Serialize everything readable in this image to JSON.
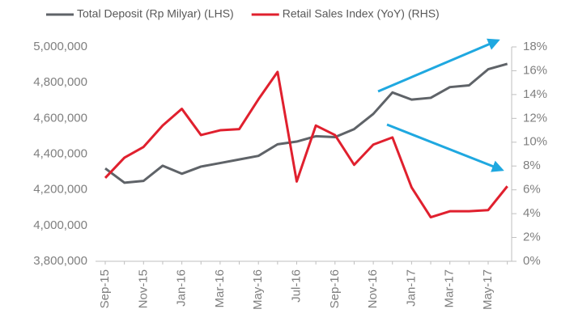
{
  "chart_data": {
    "type": "line",
    "categories": [
      "Sep-15",
      null,
      "Nov-15",
      null,
      "Jan-16",
      null,
      "Mar-16",
      null,
      "May-16",
      null,
      "Jul-16",
      null,
      "Sep-16",
      null,
      "Nov-16",
      null,
      "Jan-17",
      null,
      "Mar-17",
      null,
      "May-17",
      null
    ],
    "series": [
      {
        "name": "Total Deposit (Rp Milyar) (LHS)",
        "color": "#5f6368",
        "axis": "y",
        "values": [
          4320000,
          4240000,
          4250000,
          4335000,
          4290000,
          4330000,
          4350000,
          4370000,
          4390000,
          4455000,
          4470000,
          4500000,
          4495000,
          4540000,
          4625000,
          4745000,
          4705000,
          4715000,
          4775000,
          4785000,
          4875000,
          4905000
        ]
      },
      {
        "name": "Retail Sales Index (YoY) (RHS)",
        "color": "#e0202e",
        "axis": "y2",
        "values": [
          7.0,
          8.7,
          9.6,
          11.4,
          12.8,
          10.6,
          11.0,
          11.1,
          13.6,
          15.9,
          6.7,
          11.4,
          10.6,
          8.1,
          9.8,
          10.4,
          6.2,
          3.7,
          4.2,
          4.2,
          4.3,
          6.3
        ]
      }
    ],
    "ylim": [
      3800000,
      5000000
    ],
    "yticks": [
      {
        "value": 3800000,
        "label": "3,800,000"
      },
      {
        "value": 4000000,
        "label": "4,000,000"
      },
      {
        "value": 4200000,
        "label": "4,200,000"
      },
      {
        "value": 4400000,
        "label": "4,400,000"
      },
      {
        "value": 4600000,
        "label": "4,600,000"
      },
      {
        "value": 4800000,
        "label": "4,800,000"
      },
      {
        "value": 5000000,
        "label": "5,000,000"
      }
    ],
    "y2lim": [
      0,
      18
    ],
    "y2ticks": [
      {
        "value": 0,
        "label": "0%"
      },
      {
        "value": 2,
        "label": "2%"
      },
      {
        "value": 4,
        "label": "4%"
      },
      {
        "value": 6,
        "label": "6%"
      },
      {
        "value": 8,
        "label": "8%"
      },
      {
        "value": 10,
        "label": "10%"
      },
      {
        "value": 12,
        "label": "12%"
      },
      {
        "value": 14,
        "label": "14%"
      },
      {
        "value": 16,
        "label": "16%"
      },
      {
        "value": 18,
        "label": "18%"
      }
    ],
    "grid": false
  }
}
